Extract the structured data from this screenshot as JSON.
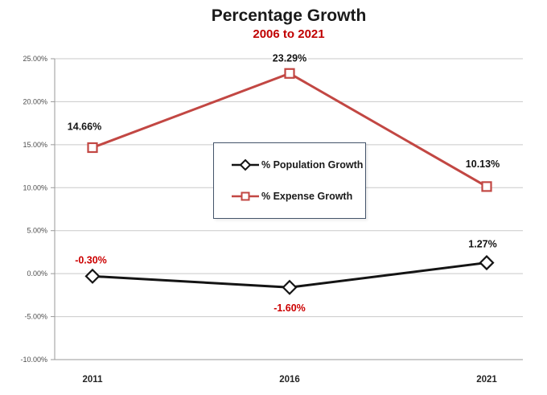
{
  "title": "Percentage Growth",
  "subtitle": "2006 to 2021",
  "colors": {
    "title_text": "#1a1a1a",
    "subtitle_text": "#c00000",
    "population_series": "#141414",
    "expense_series": "#c24743",
    "negative_label": "#cc0000",
    "positive_label": "#141414",
    "gridline": "#c9c9c9",
    "axis_line": "#9a9a9a",
    "tick_label": "#4d4d4d",
    "x_label": "#262626",
    "legend_border": "#44546a",
    "marker_fill": "#ffffff"
  },
  "legend": {
    "items": [
      {
        "label": "% Population Growth",
        "marker": "diamond",
        "color": "#141414"
      },
      {
        "label": "% Expense Growth",
        "marker": "square",
        "color": "#c24743"
      }
    ]
  },
  "chart_data": {
    "type": "line",
    "title": "Percentage Growth",
    "subtitle": "2006 to 2021",
    "categories": [
      "2011",
      "2016",
      "2021"
    ],
    "series": [
      {
        "name": "% Population Growth",
        "values": [
          -0.3,
          -1.6,
          1.27
        ],
        "labels": [
          "-0.30%",
          "-1.60%",
          "1.27%"
        ],
        "label_colors": [
          "#cc0000",
          "#cc0000",
          "#141414"
        ],
        "color": "#141414",
        "marker": "diamond"
      },
      {
        "name": "% Expense Growth",
        "values": [
          14.66,
          23.29,
          10.13
        ],
        "labels": [
          "14.66%",
          "23.29%",
          "10.13%"
        ],
        "label_colors": [
          "#141414",
          "#141414",
          "#141414"
        ],
        "color": "#c24743",
        "marker": "square"
      }
    ],
    "y_axis": {
      "min": -10,
      "max": 25,
      "step": 5,
      "tick_labels": [
        "25.00%",
        "20.00%",
        "15.00%",
        "10.00%",
        "5.00%",
        "0.00%",
        "-5.00%",
        "-10.00%"
      ]
    },
    "grid": true,
    "legend_position": "center"
  }
}
